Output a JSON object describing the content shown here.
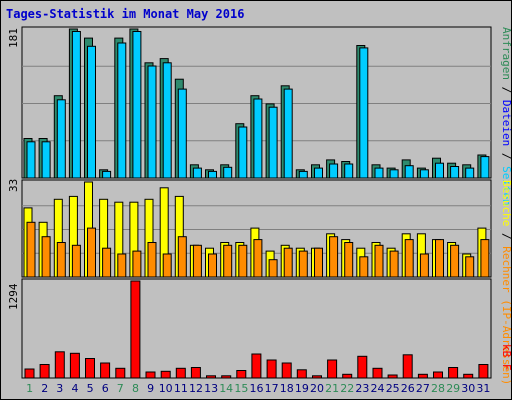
{
  "title": "Tages-Statistik im Monat May 2016",
  "colors": {
    "dark_teal": "#2e8b6e",
    "cyan": "#00ccff",
    "yellow": "#ffff00",
    "orange": "#ff8c00",
    "red": "#ff0000",
    "weekend_day": "#2e8b57",
    "weekday": "#000080"
  },
  "right_labels": {
    "top": [
      {
        "text": "Anfragen",
        "color": "#2e8b57"
      },
      {
        "text": " / ",
        "color": "#000000"
      },
      {
        "text": "Dateien",
        "color": "#0000ff"
      },
      {
        "text": " / ",
        "color": "#000000"
      },
      {
        "text": "Seiten",
        "color": "#00ccff"
      }
    ],
    "middle": [
      {
        "text": "Besuche",
        "color": "#ffff00"
      },
      {
        "text": " / ",
        "color": "#000000"
      },
      {
        "text": "Rechner (IP-Adressen)",
        "color": "#ff8c00"
      }
    ],
    "bottom": [
      {
        "text": "kB F",
        "color": "#ff0000"
      }
    ]
  },
  "chart_data": [
    {
      "type": "bar",
      "panel": "top",
      "y_max_label": "181",
      "ylim": [
        0,
        181
      ],
      "categories": [
        "1",
        "2",
        "3",
        "4",
        "5",
        "6",
        "7",
        "8",
        "9",
        "10",
        "11",
        "12",
        "13",
        "14",
        "15",
        "16",
        "17",
        "18",
        "19",
        "20",
        "21",
        "22",
        "23",
        "24",
        "25",
        "26",
        "27",
        "28",
        "29",
        "30",
        "31"
      ],
      "weekend_days": [
        "1",
        "7",
        "8",
        "14",
        "15",
        "21",
        "22",
        "28",
        "29"
      ],
      "series": [
        {
          "values": [
            48,
            48,
            100,
            181,
            170,
            10,
            170,
            181,
            140,
            145,
            120,
            16,
            10,
            16,
            66,
            100,
            90,
            112,
            10,
            16,
            22,
            20,
            161,
            16,
            12,
            22,
            12,
            24,
            18,
            16,
            28
          ]
        },
        {
          "values": [
            44,
            44,
            95,
            178,
            160,
            8,
            164,
            178,
            136,
            140,
            108,
            12,
            8,
            13,
            62,
            96,
            86,
            108,
            8,
            12,
            17,
            17,
            158,
            12,
            10,
            15,
            10,
            18,
            14,
            12,
            26
          ]
        }
      ]
    },
    {
      "type": "bar",
      "panel": "middle",
      "y_max_label": "33",
      "ylim": [
        0,
        33
      ],
      "categories": [
        "1",
        "2",
        "3",
        "4",
        "5",
        "6",
        "7",
        "8",
        "9",
        "10",
        "11",
        "12",
        "13",
        "14",
        "15",
        "16",
        "17",
        "18",
        "19",
        "20",
        "21",
        "22",
        "23",
        "24",
        "25",
        "26",
        "27",
        "28",
        "29",
        "30",
        "31"
      ],
      "series": [
        {
          "values": [
            24,
            19,
            27,
            28,
            33,
            27,
            26,
            26,
            27,
            31,
            28,
            11,
            10,
            12,
            12,
            17,
            9,
            11,
            10,
            10,
            15,
            13,
            10,
            12,
            10,
            15,
            15,
            13,
            12,
            8,
            17
          ]
        },
        {
          "values": [
            19,
            14,
            12,
            11,
            17,
            10,
            8,
            9,
            12,
            8,
            14,
            11,
            8,
            11,
            11,
            13,
            6,
            10,
            9,
            10,
            14,
            12,
            7,
            11,
            9,
            13,
            8,
            13,
            11,
            7,
            13
          ]
        }
      ]
    },
    {
      "type": "bar",
      "panel": "bottom",
      "y_max_label": "1294",
      "ylim": [
        0,
        1294
      ],
      "categories": [
        "1",
        "2",
        "3",
        "4",
        "5",
        "6",
        "7",
        "8",
        "9",
        "10",
        "11",
        "12",
        "13",
        "14",
        "15",
        "16",
        "17",
        "18",
        "19",
        "20",
        "21",
        "22",
        "23",
        "24",
        "25",
        "26",
        "27",
        "28",
        "29",
        "30",
        "31"
      ],
      "series": [
        {
          "values": [
            120,
            180,
            350,
            330,
            260,
            200,
            130,
            1294,
            80,
            90,
            130,
            140,
            30,
            30,
            100,
            320,
            240,
            200,
            110,
            30,
            240,
            50,
            290,
            130,
            40,
            310,
            50,
            80,
            140,
            50,
            180
          ]
        }
      ]
    }
  ]
}
